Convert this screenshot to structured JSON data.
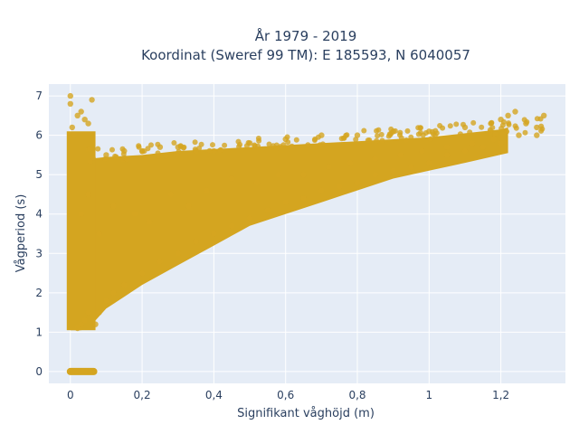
{
  "chart_data": {
    "type": "scatter",
    "title_line1": "År 1979 - 2019",
    "title_line2": "Koordinat (Sweref 99 TM): E 185593, N 6040057",
    "xlabel": "Signifikant våghöjd (m)",
    "ylabel": "Vågperiod (s)",
    "xlim": [
      -0.06,
      1.38
    ],
    "ylim": [
      -0.3,
      7.3
    ],
    "x_ticks": [
      0,
      0.2,
      0.4,
      0.6,
      0.8,
      1,
      1.2
    ],
    "x_tick_labels": [
      "0",
      "0,2",
      "0,4",
      "0,6",
      "0,8",
      "1",
      "1,2"
    ],
    "y_ticks": [
      0,
      1,
      2,
      3,
      4,
      5,
      6,
      7
    ],
    "y_tick_labels": [
      "0",
      "1",
      "2",
      "3",
      "4",
      "5",
      "6",
      "7"
    ],
    "grid": true,
    "colors": {
      "marker": "#d4a520",
      "plot_bg": "#e5ecf6",
      "grid": "#ffffff",
      "text": "#2a3f5f"
    },
    "series": [
      {
        "x": [
          0,
          0.01,
          0.02,
          0.03,
          0.04,
          0.05,
          0.06,
          0.005,
          0.015,
          0.025,
          0.035,
          0.045,
          0.055,
          0.0,
          0.0,
          0.005,
          0.01,
          0.02,
          0.03,
          0.04,
          0.05,
          0.06,
          0.02,
          0.03,
          0.04,
          0.05,
          0.07,
          0.08,
          0.1,
          0.12,
          0.15,
          0.2,
          0.25,
          0.3,
          0.35,
          0.4,
          0.45,
          0.5,
          0.55,
          0.6,
          0.65,
          0.7,
          0.75,
          0.8,
          0.85,
          0.9,
          0.95,
          1.0,
          1.05,
          1.1,
          1.15,
          1.2,
          1.25,
          1.3,
          0.1,
          0.15,
          0.2,
          0.25,
          0.3,
          0.35,
          0.4,
          0.5,
          0.6,
          0.7,
          0.8,
          0.9,
          1.0,
          1.1,
          1.2,
          1.32,
          0.03,
          0.05,
          0.08,
          0.12,
          0.18,
          0.22,
          0.28,
          0.33,
          0.38,
          0.45,
          0.52,
          0.58,
          0.65,
          0.72,
          0.78,
          0.85,
          0.92,
          0.98,
          1.05,
          1.12,
          1.18,
          1.22,
          1.24,
          1.27,
          1.3
        ],
        "y": [
          0,
          0,
          0,
          0,
          0,
          0,
          0,
          0,
          0,
          0,
          0,
          0,
          0,
          7.0,
          6.8,
          6.2,
          6.0,
          6.5,
          6.6,
          6.4,
          6.3,
          6.9,
          1.1,
          1.2,
          1.3,
          1.5,
          1.2,
          1.5,
          1.8,
          2.0,
          2.2,
          2.5,
          2.8,
          3.0,
          3.3,
          3.5,
          3.7,
          3.9,
          4.1,
          4.3,
          4.4,
          4.6,
          4.7,
          4.8,
          5.0,
          5.1,
          5.2,
          5.3,
          5.5,
          5.6,
          5.7,
          5.8,
          6.0,
          6.2,
          5.5,
          5.6,
          5.6,
          5.7,
          5.7,
          5.6,
          5.6,
          5.8,
          5.9,
          6.0,
          6.0,
          6.1,
          6.1,
          6.2,
          6.4,
          6.5,
          4.0,
          4.5,
          3.5,
          4.2,
          4.0,
          3.8,
          4.5,
          4.2,
          4.6,
          4.9,
          4.8,
          5.0,
          5.0,
          5.2,
          5.3,
          5.4,
          5.5,
          5.6,
          5.7,
          5.8,
          5.9,
          6.5,
          6.6,
          6.3,
          6.0
        ]
      }
    ]
  }
}
